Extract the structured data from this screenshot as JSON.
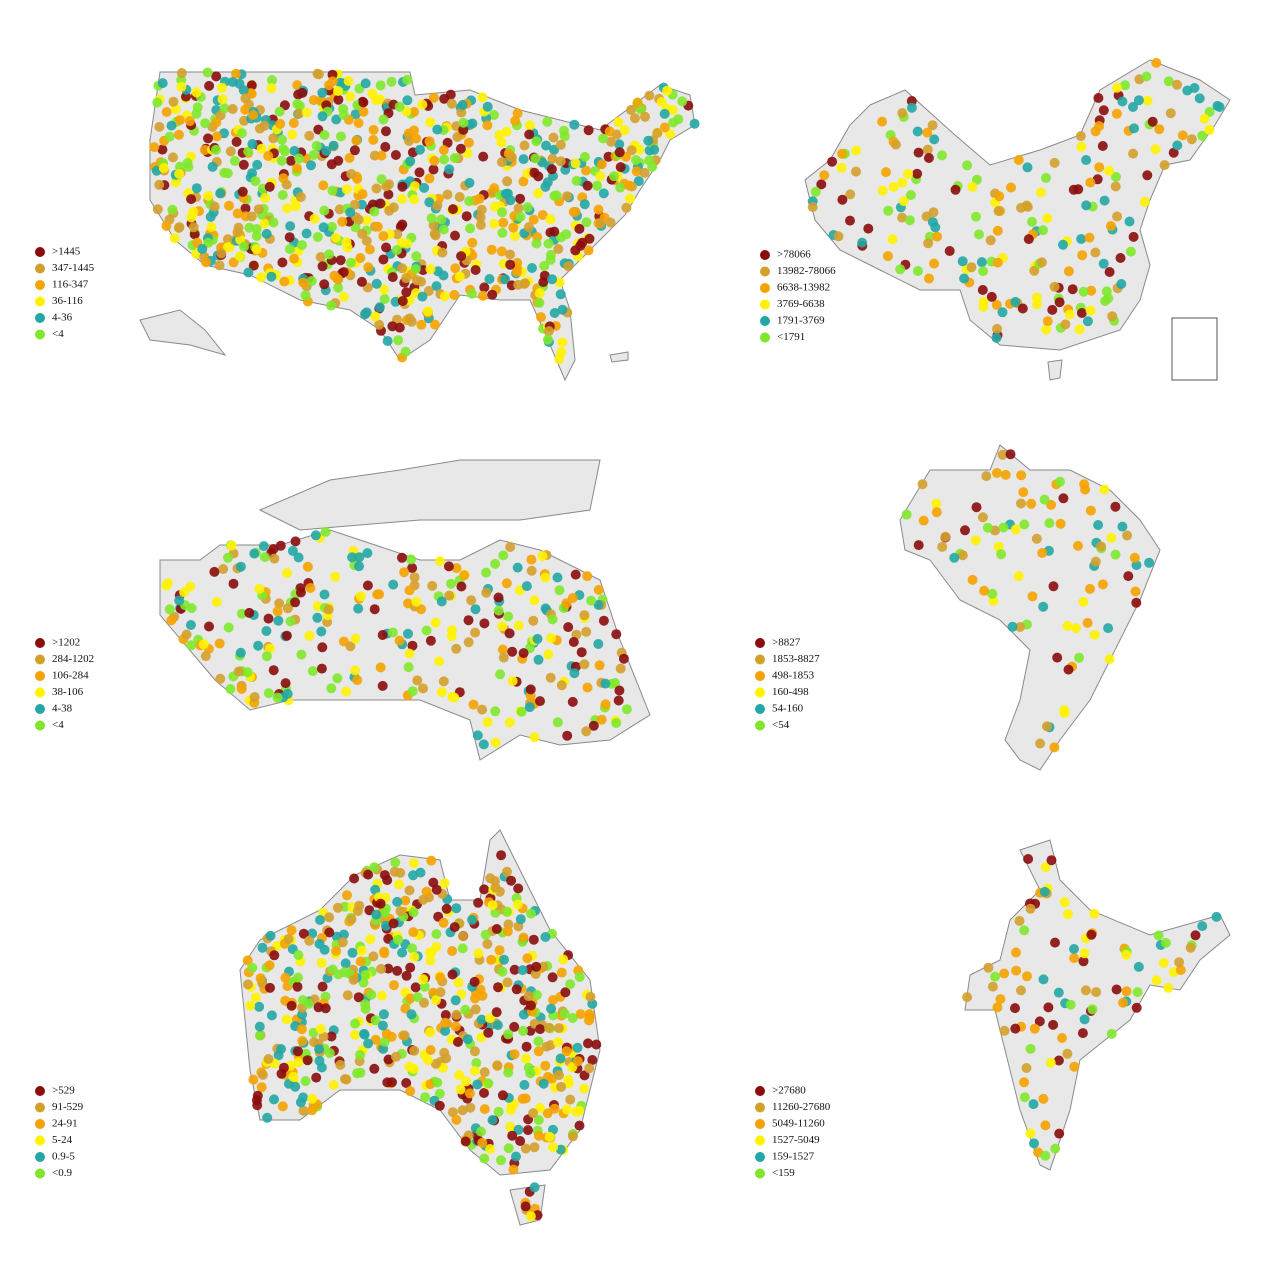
{
  "panels": [
    {
      "legend": [
        {
          "label": ">1445",
          "color": "#8b0c0c"
        },
        {
          "label": "347-1445",
          "color": "#d4a02c"
        },
        {
          "label": "116-347",
          "color": "#f5a300"
        },
        {
          "label": "36-116",
          "color": "#fff200"
        },
        {
          "label": "4-36",
          "color": "#22a7a5"
        },
        {
          "label": "<4",
          "color": "#80e82c"
        }
      ]
    },
    {
      "legend": [
        {
          "label": ">78066",
          "color": "#8b0c0c"
        },
        {
          "label": "13982-78066",
          "color": "#d4a02c"
        },
        {
          "label": "6638-13982",
          "color": "#f5a300"
        },
        {
          "label": "3769-6638",
          "color": "#fff200"
        },
        {
          "label": "1791-3769",
          "color": "#22a7a5"
        },
        {
          "label": "<1791",
          "color": "#80e82c"
        }
      ]
    },
    {
      "legend": [
        {
          "label": ">1202",
          "color": "#8b0c0c"
        },
        {
          "label": "284-1202",
          "color": "#d4a02c"
        },
        {
          "label": "106-284",
          "color": "#f5a300"
        },
        {
          "label": "38-106",
          "color": "#fff200"
        },
        {
          "label": "4-38",
          "color": "#22a7a5"
        },
        {
          "label": "<4",
          "color": "#80e82c"
        }
      ]
    },
    {
      "legend": [
        {
          "label": ">8827",
          "color": "#8b0c0c"
        },
        {
          "label": "1853-8827",
          "color": "#d4a02c"
        },
        {
          "label": "498-1853",
          "color": "#f5a300"
        },
        {
          "label": "160-498",
          "color": "#fff200"
        },
        {
          "label": "54-160",
          "color": "#22a7a5"
        },
        {
          "label": "<54",
          "color": "#80e82c"
        }
      ]
    },
    {
      "legend": [
        {
          "label": ">529",
          "color": "#8b0c0c"
        },
        {
          "label": "91-529",
          "color": "#d4a02c"
        },
        {
          "label": "24-91",
          "color": "#f5a300"
        },
        {
          "label": "5-24",
          "color": "#fff200"
        },
        {
          "label": "0.9-5",
          "color": "#22a7a5"
        },
        {
          "label": "<0.9",
          "color": "#80e82c"
        }
      ]
    },
    {
      "legend": [
        {
          "label": ">27680",
          "color": "#8b0c0c"
        },
        {
          "label": "11260-27680",
          "color": "#d4a02c"
        },
        {
          "label": "5049-11260",
          "color": "#f5a300"
        },
        {
          "label": "1527-5049",
          "color": "#fff200"
        },
        {
          "label": "159-1527",
          "color": "#22a7a5"
        },
        {
          "label": "<159",
          "color": "#80e82c"
        }
      ]
    }
  ]
}
